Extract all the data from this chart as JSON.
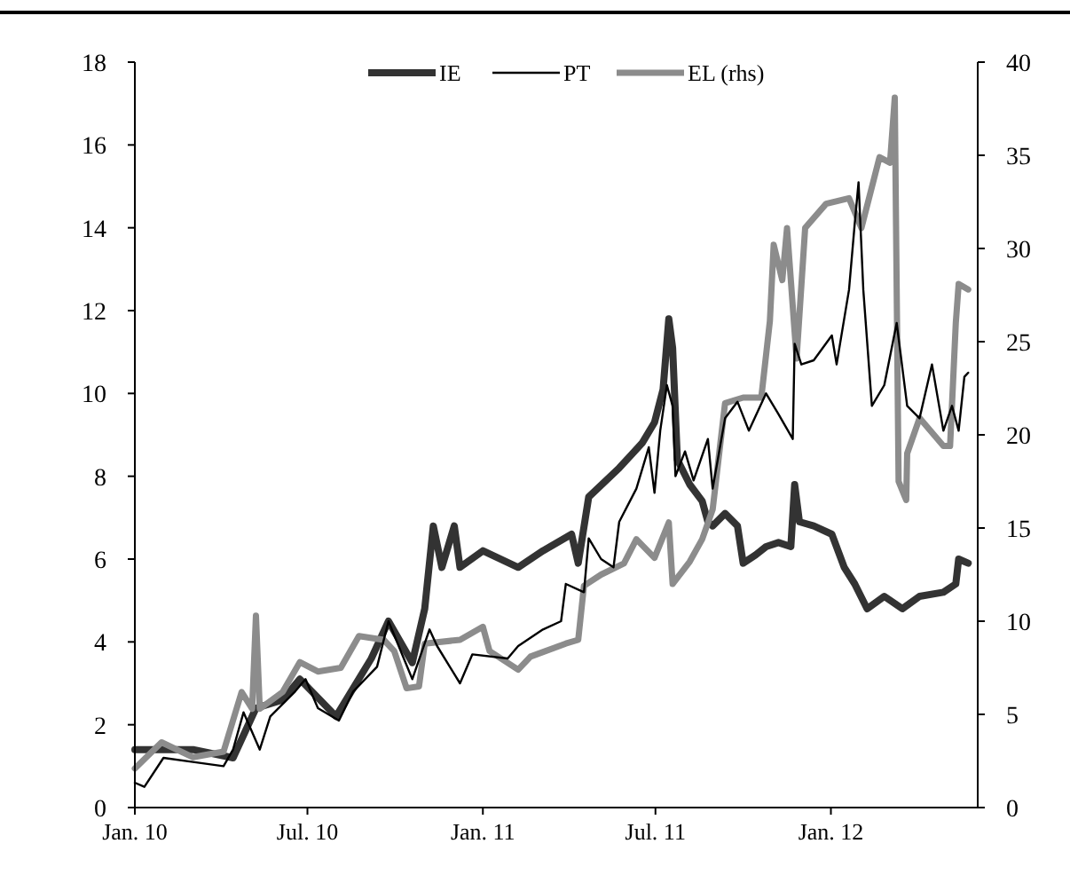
{
  "chart_data": {
    "type": "line",
    "legend": "top",
    "grid": false,
    "marker": "none",
    "line_style": "solid",
    "xlim": [
      "2010-01-01",
      "2012-06-03"
    ],
    "xticks": [
      {
        "value": "2010-01-01",
        "label": "Jan. 10"
      },
      {
        "value": "2010-07-01",
        "label": "Jul. 10"
      },
      {
        "value": "2011-01-01",
        "label": "Jan. 11"
      },
      {
        "value": "2011-07-01",
        "label": "Jul. 11"
      },
      {
        "value": "2012-01-01",
        "label": "Jan. 12"
      }
    ],
    "ylim": [
      0,
      18
    ],
    "yticks": [
      0,
      2,
      4,
      6,
      8,
      10,
      12,
      14,
      16,
      18
    ],
    "y2lim": [
      0,
      40
    ],
    "y2ticks": [
      0,
      5,
      10,
      15,
      20,
      25,
      30,
      35,
      40
    ],
    "series": [
      {
        "name": "IE",
        "color": "#333333",
        "x": [
          "2010-01-01",
          "2010-03-03",
          "2010-04-14",
          "2010-05-08",
          "2010-06-05",
          "2010-06-23",
          "2010-07-31",
          "2010-09-06",
          "2010-09-24",
          "2010-10-19",
          "2010-11-01",
          "2010-11-10",
          "2010-11-19",
          "2010-12-02",
          "2010-12-08",
          "2011-01-01",
          "2011-02-07",
          "2011-03-05",
          "2011-04-04",
          "2011-04-11",
          "2011-04-22",
          "2011-05-24",
          "2011-06-17",
          "2011-06-30",
          "2011-07-09",
          "2011-07-15",
          "2011-07-19",
          "2011-07-24",
          "2011-08-06",
          "2011-08-19",
          "2011-08-25",
          "2011-08-30",
          "2011-09-12",
          "2011-09-25",
          "2011-10-01",
          "2011-10-14",
          "2011-10-25",
          "2011-11-07",
          "2011-11-20",
          "2011-11-24",
          "2011-11-29",
          "2011-12-14",
          "2012-01-02",
          "2012-01-15",
          "2012-01-26",
          "2012-02-08",
          "2012-02-26",
          "2012-03-16",
          "2012-04-03",
          "2012-04-28",
          "2012-05-11",
          "2012-05-14",
          "2012-05-24"
        ],
        "values": [
          1.4,
          1.4,
          1.2,
          2.4,
          2.6,
          3.1,
          2.2,
          3.6,
          4.5,
          3.5,
          4.8,
          6.8,
          5.8,
          6.8,
          5.8,
          6.2,
          5.8,
          6.2,
          6.6,
          5.9,
          7.5,
          8.2,
          8.8,
          9.3,
          10.1,
          11.8,
          11.1,
          8.4,
          7.8,
          7.4,
          6.9,
          6.8,
          7.1,
          6.8,
          5.9,
          6.1,
          6.3,
          6.4,
          6.3,
          7.8,
          6.9,
          6.8,
          6.6,
          5.8,
          5.4,
          4.8,
          5.1,
          4.8,
          5.1,
          5.2,
          5.4,
          6.0,
          5.9
        ]
      },
      {
        "name": "PT",
        "color": "#000000",
        "x": [
          "2010-01-01",
          "2010-01-11",
          "2010-01-31",
          "2010-03-03",
          "2010-04-04",
          "2010-04-14",
          "2010-04-25",
          "2010-05-12",
          "2010-05-23",
          "2010-06-18",
          "2010-06-29",
          "2010-07-12",
          "2010-08-03",
          "2010-08-18",
          "2010-09-12",
          "2010-09-24",
          "2010-10-19",
          "2010-11-06",
          "2010-11-14",
          "2010-12-08",
          "2010-12-21",
          "2011-01-27",
          "2011-02-07",
          "2011-03-05",
          "2011-03-24",
          "2011-03-29",
          "2011-04-17",
          "2011-04-22",
          "2011-05-05",
          "2011-05-18",
          "2011-05-24",
          "2011-06-11",
          "2011-06-24",
          "2011-06-30",
          "2011-07-06",
          "2011-07-13",
          "2011-07-19",
          "2011-07-22",
          "2011-08-01",
          "2011-08-10",
          "2011-08-25",
          "2011-08-30",
          "2011-09-12",
          "2011-09-25",
          "2011-10-07",
          "2011-10-25",
          "2011-11-07",
          "2011-11-22",
          "2011-11-24",
          "2011-12-01",
          "2011-12-14",
          "2012-01-02",
          "2012-01-07",
          "2012-01-20",
          "2012-01-26",
          "2012-01-30",
          "2012-02-04",
          "2012-02-13",
          "2012-02-26",
          "2012-03-10",
          "2012-03-21",
          "2012-04-03",
          "2012-04-16",
          "2012-04-28",
          "2012-05-07",
          "2012-05-14",
          "2012-05-20",
          "2012-05-24"
        ],
        "values": [
          0.6,
          0.5,
          1.2,
          1.1,
          1.0,
          1.4,
          2.3,
          1.4,
          2.2,
          2.8,
          3.1,
          2.4,
          2.1,
          2.8,
          3.4,
          4.5,
          3.1,
          4.3,
          3.9,
          3.0,
          3.7,
          3.6,
          3.9,
          4.3,
          4.5,
          5.4,
          5.2,
          6.5,
          6.0,
          5.8,
          6.9,
          7.7,
          8.7,
          7.6,
          9.1,
          10.2,
          9.7,
          8.0,
          8.6,
          7.9,
          8.9,
          7.7,
          9.4,
          9.8,
          9.1,
          10.0,
          9.5,
          8.9,
          11.2,
          10.7,
          10.8,
          11.4,
          10.7,
          12.5,
          14.1,
          15.1,
          12.5,
          9.7,
          10.2,
          11.7,
          9.7,
          9.4,
          10.7,
          9.1,
          9.7,
          9.1,
          10.4,
          10.5
        ]
      },
      {
        "name": "EL (rhs)",
        "color": "#8c8c8c",
        "axis": "y2",
        "x": [
          "2010-01-01",
          "2010-01-29",
          "2010-03-03",
          "2010-04-04",
          "2010-04-23",
          "2010-05-04",
          "2010-05-08",
          "2010-05-12",
          "2010-06-05",
          "2010-06-23",
          "2010-07-12",
          "2010-08-05",
          "2010-08-24",
          "2010-09-19",
          "2010-09-30",
          "2010-10-13",
          "2010-10-26",
          "2010-11-01",
          "2010-12-08",
          "2011-01-01",
          "2011-01-08",
          "2011-02-07",
          "2011-02-20",
          "2011-03-29",
          "2011-04-11",
          "2011-04-17",
          "2011-05-05",
          "2011-05-29",
          "2011-06-11",
          "2011-06-30",
          "2011-07-15",
          "2011-07-19",
          "2011-08-06",
          "2011-08-19",
          "2011-08-30",
          "2011-09-12",
          "2011-10-01",
          "2011-10-20",
          "2011-10-29",
          "2011-11-02",
          "2011-11-11",
          "2011-11-16",
          "2011-11-26",
          "2011-12-05",
          "2011-12-27",
          "2012-01-20",
          "2012-02-02",
          "2012-02-21",
          "2012-03-03",
          "2012-03-08",
          "2012-03-12",
          "2012-03-20",
          "2012-03-21",
          "2012-04-03",
          "2012-04-28",
          "2012-05-05",
          "2012-05-11",
          "2012-05-14",
          "2012-05-24"
        ],
        "values": [
          2.1,
          3.5,
          2.7,
          3.0,
          6.2,
          5.3,
          10.3,
          5.3,
          6.2,
          7.8,
          7.3,
          7.5,
          9.2,
          9.0,
          8.4,
          6.4,
          6.5,
          8.8,
          9.0,
          9.7,
          8.4,
          7.4,
          8.1,
          8.8,
          9.0,
          11.9,
          12.5,
          13.1,
          14.4,
          13.4,
          15.3,
          12.0,
          13.2,
          14.4,
          16.0,
          21.7,
          22.0,
          22.0,
          26.1,
          30.2,
          28.3,
          31.1,
          24.1,
          31.1,
          32.4,
          32.7,
          31.1,
          34.9,
          34.6,
          38.1,
          17.5,
          16.5,
          19.0,
          20.9,
          19.4,
          19.4,
          26.0,
          28.1,
          27.8
        ]
      }
    ]
  }
}
